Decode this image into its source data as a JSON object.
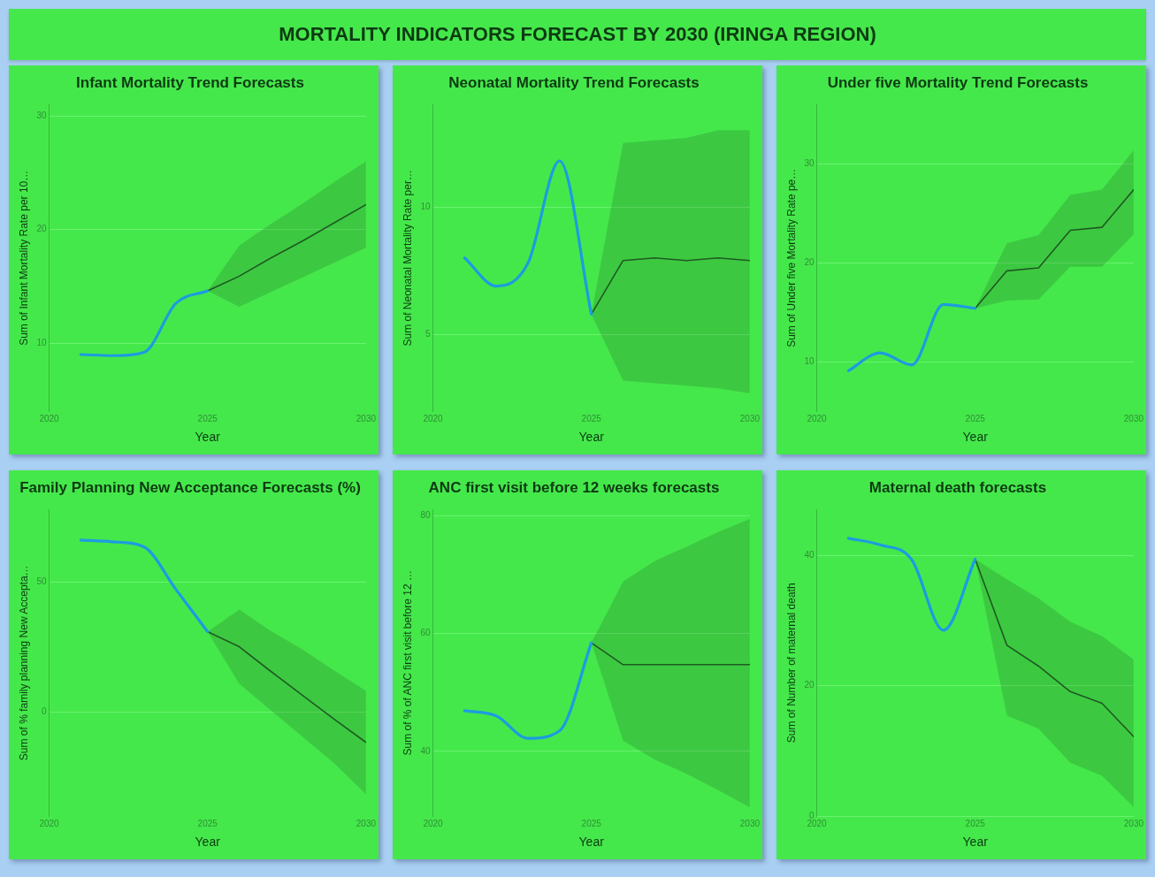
{
  "chart_data": [
    {
      "type": "other",
      "title": "MORTALITY INDICATORS FORECAST BY  2030 (IRINGA REGION)"
    },
    {
      "type": "line",
      "title": "Infant Mortality Trend Forecasts",
      "xlabel": "Year",
      "ylabel": "Sum of Infant Mortality Rate per 10…",
      "xlim": [
        2020,
        2030
      ],
      "xticks": [
        2020,
        2025,
        2030
      ],
      "ylim": [
        4,
        31
      ],
      "yticks": [
        10,
        20,
        30
      ],
      "grid": "y",
      "marker": "none",
      "series": [
        {
          "color": "#1e9be0",
          "x": [
            2021,
            2022,
            2023,
            2024,
            2025
          ],
          "values": [
            9.0,
            8.9,
            9.2,
            13.5,
            14.6
          ]
        },
        {
          "color": "#1f5a22",
          "x": [
            2025,
            2026,
            2027,
            2028,
            2029,
            2030
          ],
          "values": [
            14.6,
            15.9,
            17.5,
            19.0,
            20.6,
            22.2
          ],
          "lower": [
            14.6,
            13.2,
            14.5,
            15.8,
            17.1,
            18.4
          ],
          "upper": [
            14.6,
            18.6,
            20.5,
            22.3,
            24.2,
            26.0
          ]
        }
      ]
    },
    {
      "type": "line",
      "title": "Neonatal Mortality Trend Forecasts",
      "xlabel": "Year",
      "ylabel": "Sum of Neonatal Mortality Rate per…",
      "xlim": [
        2020,
        2030
      ],
      "xticks": [
        2020,
        2025,
        2030
      ],
      "ylim": [
        2,
        14
      ],
      "yticks": [
        5,
        10
      ],
      "grid": "y",
      "marker": "none",
      "series": [
        {
          "color": "#1e9be0",
          "x": [
            2021,
            2022,
            2023,
            2024,
            2025
          ],
          "values": [
            8.0,
            6.9,
            7.8,
            11.8,
            5.8
          ]
        },
        {
          "color": "#1f5a22",
          "x": [
            2025,
            2026,
            2027,
            2028,
            2029,
            2030
          ],
          "values": [
            5.8,
            7.9,
            8.0,
            7.9,
            8.0,
            7.9
          ],
          "lower": [
            5.8,
            3.2,
            3.1,
            3.0,
            2.9,
            2.7
          ],
          "upper": [
            5.8,
            12.5,
            12.6,
            12.7,
            13.0,
            13.0
          ]
        }
      ]
    },
    {
      "type": "line",
      "title": "Under five Mortality Trend Forecasts",
      "xlabel": "Year",
      "ylabel": "Sum of Under five Mortality Rate pe…",
      "xlim": [
        2020,
        2030
      ],
      "xticks": [
        2020,
        2025,
        2030
      ],
      "ylim": [
        5,
        36
      ],
      "yticks": [
        10,
        20,
        30
      ],
      "grid": "y",
      "marker": "none",
      "series": [
        {
          "color": "#1e9be0",
          "x": [
            2021,
            2022,
            2023,
            2024,
            2025
          ],
          "values": [
            9.1,
            10.9,
            9.7,
            15.8,
            15.4
          ]
        },
        {
          "color": "#1f5a22",
          "x": [
            2025,
            2026,
            2027,
            2028,
            2029,
            2030
          ],
          "values": [
            15.4,
            19.2,
            19.5,
            23.3,
            23.6,
            27.4
          ],
          "lower": [
            15.4,
            16.2,
            16.3,
            19.6,
            19.6,
            22.9
          ],
          "upper": [
            15.4,
            22.0,
            22.8,
            26.9,
            27.4,
            31.4
          ]
        }
      ]
    },
    {
      "type": "line",
      "title": "Family Planning New Acceptance Forecasts (%)",
      "xlabel": "Year",
      "ylabel": "Sum of % family planning New Accepta…",
      "xlim": [
        2020,
        2030
      ],
      "xticks": [
        2020,
        2025,
        2030
      ],
      "ylim": [
        -40,
        78
      ],
      "yticks": [
        0,
        50
      ],
      "grid": "y",
      "marker": "none",
      "series": [
        {
          "color": "#1e9be0",
          "x": [
            2021,
            2022,
            2023,
            2024,
            2025
          ],
          "values": [
            66.3,
            65.6,
            63.6,
            47.3,
            31.0
          ]
        },
        {
          "color": "#1f5a22",
          "x": [
            2025,
            2026,
            2027,
            2028,
            2029,
            2030
          ],
          "values": [
            31.0,
            25.2,
            15.7,
            6.5,
            -2.7,
            -11.6
          ],
          "lower": [
            31.0,
            10.9,
            0.7,
            -9.5,
            -19.7,
            -31.6
          ],
          "upper": [
            31.0,
            39.5,
            31.3,
            24.1,
            16.0,
            8.2
          ]
        }
      ]
    },
    {
      "type": "line",
      "title": "ANC first visit before 12 weeks forecasts",
      "xlabel": "Year",
      "ylabel": "Sum of % of ANC first visit before 12 …",
      "xlim": [
        2020,
        2030
      ],
      "xticks": [
        2020,
        2025,
        2030
      ],
      "ylim": [
        29,
        81
      ],
      "yticks": [
        40,
        60,
        80
      ],
      "grid": "y",
      "marker": "none",
      "series": [
        {
          "color": "#1e9be0",
          "x": [
            2021,
            2022,
            2023,
            2024,
            2025
          ],
          "values": [
            46.9,
            46.0,
            42.2,
            43.5,
            58.4
          ]
        },
        {
          "color": "#1f5a22",
          "x": [
            2025,
            2026,
            2027,
            2028,
            2029,
            2030
          ],
          "values": [
            58.4,
            54.7,
            54.7,
            54.7,
            54.7,
            54.7
          ],
          "lower": [
            58.4,
            41.8,
            38.6,
            36.2,
            33.4,
            30.5
          ],
          "upper": [
            58.4,
            68.8,
            72.3,
            74.7,
            77.2,
            79.4
          ]
        }
      ]
    },
    {
      "type": "line",
      "title": "Maternal death forecasts",
      "xlabel": "Year",
      "ylabel": "Sum of Number of maternal death",
      "xlim": [
        2020,
        2030
      ],
      "xticks": [
        2020,
        2025,
        2030
      ],
      "ylim": [
        0,
        47
      ],
      "yticks": [
        0,
        20,
        40
      ],
      "grid": "y",
      "marker": "none",
      "series": [
        {
          "color": "#1e9be0",
          "x": [
            2021,
            2022,
            2023,
            2024,
            2025
          ],
          "values": [
            42.6,
            41.6,
            39.3,
            28.5,
            39.4
          ]
        },
        {
          "color": "#1f5a22",
          "x": [
            2025,
            2026,
            2027,
            2028,
            2029,
            2030
          ],
          "values": [
            39.4,
            26.2,
            23.0,
            19.1,
            17.3,
            12.2
          ],
          "lower": [
            39.4,
            15.4,
            13.4,
            8.2,
            6.2,
            1.4
          ],
          "upper": [
            39.4,
            36.3,
            33.4,
            29.8,
            27.6,
            24.0
          ]
        }
      ]
    }
  ]
}
